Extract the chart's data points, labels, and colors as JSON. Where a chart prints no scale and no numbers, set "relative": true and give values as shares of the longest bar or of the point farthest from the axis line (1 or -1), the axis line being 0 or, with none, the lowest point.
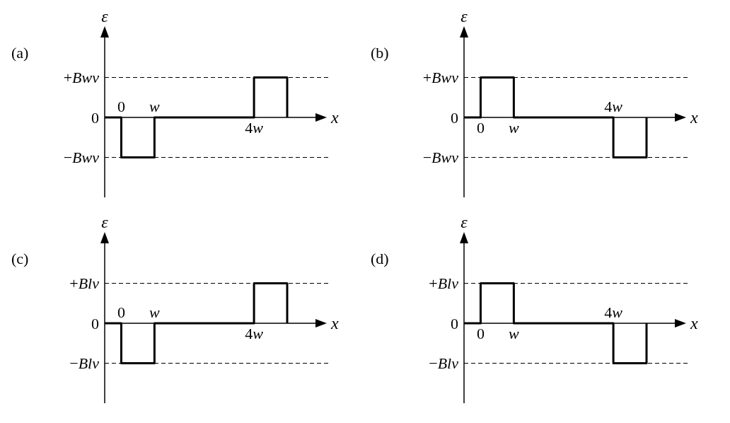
{
  "chart_data": [
    {
      "type": "step",
      "title": "(a)",
      "xlabel": "x",
      "ylabel": "ε",
      "relative": true,
      "categories": [
        null,
        "0",
        null,
        "w",
        null,
        null,
        null,
        null,
        null,
        "4w",
        null,
        null
      ],
      "series": [
        {
          "color": "#000000",
          "values": [
            0,
            -1,
            -1,
            0,
            0,
            0,
            0,
            0,
            0,
            1,
            1,
            0
          ]
        }
      ],
      "annotations": [
        "0"
      ],
      "ref_lines": [
        {
          "axis": "y",
          "value": 1,
          "label": "+Bwv",
          "line_style": "dashed"
        },
        {
          "axis": "y",
          "value": -1,
          "label": "−Bwv",
          "line_style": "dashed"
        }
      ]
    },
    {
      "type": "step",
      "title": "(b)",
      "xlabel": "x",
      "ylabel": "ε",
      "relative": true,
      "categories": [
        null,
        "0",
        null,
        "w",
        null,
        null,
        null,
        null,
        null,
        "4w",
        null,
        null
      ],
      "series": [
        {
          "color": "#000000",
          "values": [
            0,
            1,
            1,
            0,
            0,
            0,
            0,
            0,
            0,
            -1,
            -1,
            0
          ]
        }
      ],
      "annotations": [
        "0"
      ],
      "ref_lines": [
        {
          "axis": "y",
          "value": 1,
          "label": "+Bwv",
          "line_style": "dashed"
        },
        {
          "axis": "y",
          "value": -1,
          "label": "−Bwv",
          "line_style": "dashed"
        }
      ]
    },
    {
      "type": "step",
      "title": "(c)",
      "xlabel": "x",
      "ylabel": "ε",
      "relative": true,
      "categories": [
        null,
        "0",
        null,
        "w",
        null,
        null,
        null,
        null,
        null,
        "4w",
        null,
        null
      ],
      "series": [
        {
          "color": "#000000",
          "values": [
            0,
            -1,
            -1,
            0,
            0,
            0,
            0,
            0,
            0,
            1,
            1,
            0
          ]
        }
      ],
      "annotations": [
        "0"
      ],
      "ref_lines": [
        {
          "axis": "y",
          "value": 1,
          "label": "+Blv",
          "line_style": "dashed"
        },
        {
          "axis": "y",
          "value": -1,
          "label": "−Blv",
          "line_style": "dashed"
        }
      ]
    },
    {
      "type": "step",
      "title": "(d)",
      "xlabel": "x",
      "ylabel": "ε",
      "relative": true,
      "categories": [
        null,
        "0",
        null,
        "w",
        null,
        null,
        null,
        null,
        null,
        "4w",
        null,
        null
      ],
      "series": [
        {
          "color": "#000000",
          "values": [
            0,
            1,
            1,
            0,
            0,
            0,
            0,
            0,
            0,
            -1,
            -1,
            0
          ]
        }
      ],
      "annotations": [
        "0"
      ],
      "ref_lines": [
        {
          "axis": "y",
          "value": 1,
          "label": "+Blv",
          "line_style": "dashed"
        },
        {
          "axis": "y",
          "value": -1,
          "label": "−Blv",
          "line_style": "dashed"
        }
      ]
    }
  ]
}
